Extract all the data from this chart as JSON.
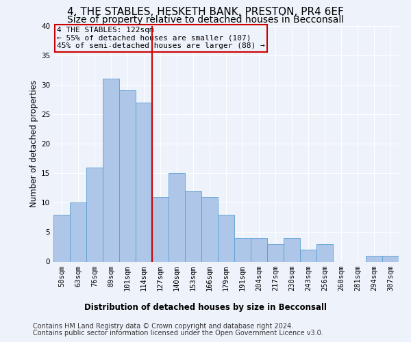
{
  "title": "4, THE STABLES, HESKETH BANK, PRESTON, PR4 6EF",
  "subtitle": "Size of property relative to detached houses in Becconsall",
  "xlabel_bottom": "Distribution of detached houses by size in Becconsall",
  "ylabel": "Number of detached properties",
  "footer_line1": "Contains HM Land Registry data © Crown copyright and database right 2024.",
  "footer_line2": "Contains public sector information licensed under the Open Government Licence v3.0.",
  "categories": [
    "50sqm",
    "63sqm",
    "76sqm",
    "89sqm",
    "101sqm",
    "114sqm",
    "127sqm",
    "140sqm",
    "153sqm",
    "166sqm",
    "179sqm",
    "191sqm",
    "204sqm",
    "217sqm",
    "230sqm",
    "243sqm",
    "256sqm",
    "268sqm",
    "281sqm",
    "294sqm",
    "307sqm"
  ],
  "values": [
    8,
    10,
    16,
    31,
    29,
    27,
    11,
    15,
    12,
    11,
    8,
    4,
    4,
    3,
    4,
    2,
    3,
    0,
    0,
    1,
    1
  ],
  "bar_color": "#aec6e8",
  "bar_edge_color": "#5a9fd4",
  "vline_x_index": 6,
  "vline_color": "#cc0000",
  "annotation_line1": "4 THE STABLES: 122sqm",
  "annotation_line2": "← 55% of detached houses are smaller (107)",
  "annotation_line3": "45% of semi-detached houses are larger (88) →",
  "annotation_box_color": "#cc0000",
  "ylim": [
    0,
    40
  ],
  "yticks": [
    0,
    5,
    10,
    15,
    20,
    25,
    30,
    35,
    40
  ],
  "background_color": "#eef2fa",
  "grid_color": "#ffffff",
  "title_fontsize": 11,
  "subtitle_fontsize": 10,
  "axis_label_fontsize": 8.5,
  "tick_fontsize": 7.5,
  "footer_fontsize": 7.0,
  "annotation_fontsize": 8.0,
  "ylabel_fontsize": 8.5
}
